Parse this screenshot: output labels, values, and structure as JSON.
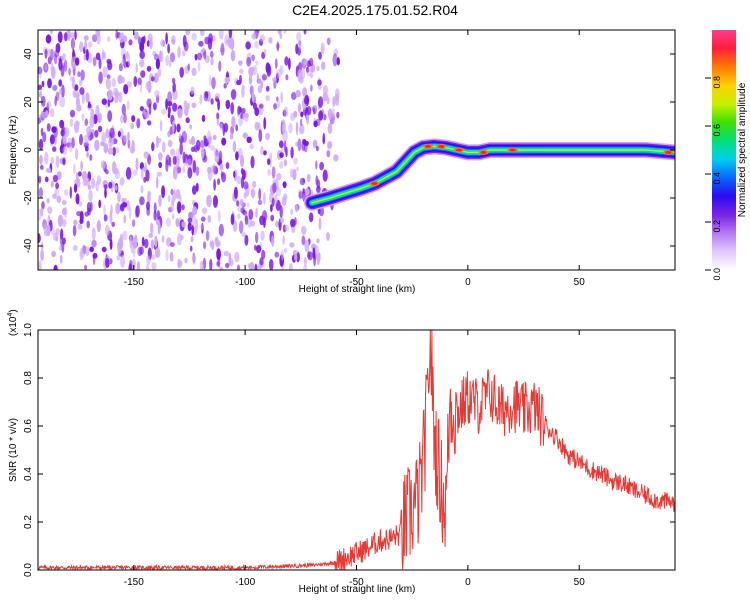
{
  "title": "C2E4.2025.175.01.52.R04",
  "colors": {
    "snr_line": "#e53935",
    "frame": "#000000",
    "scatter_dark": "#7b16e8",
    "scatter_light": "#cfa8f7"
  },
  "chart_data": [
    {
      "type": "heatmap",
      "xlabel": "Height of straight line (km)",
      "ylabel": "Frequency (Hz)",
      "xlim": [
        -193,
        93
      ],
      "ylim": [
        -50,
        50
      ],
      "xticks": [
        -150,
        -100,
        -50,
        0,
        50
      ],
      "yticks": [
        -40,
        -20,
        0,
        20,
        40
      ],
      "colorbar": {
        "label": "Normalized spectral amplitude",
        "range": [
          0,
          1
        ],
        "ticks": [
          "0.0",
          "0.2",
          "0.4",
          "0.6",
          "0.8"
        ],
        "colormap": [
          "#ffffff",
          "#e1c8fb",
          "#b678f2",
          "#7a22e6",
          "#2a0cf0",
          "#0a66ff",
          "#00d0f0",
          "#00e07a",
          "#3ce000",
          "#c8f000",
          "#ffd000",
          "#ff7a00",
          "#ff1e3c",
          "#ff3c8c"
        ]
      },
      "noise_region_x": [
        -193,
        -58
      ],
      "ridge": [
        {
          "x": -70,
          "y": -22
        },
        {
          "x": -62,
          "y": -20
        },
        {
          "x": -55,
          "y": -18
        },
        {
          "x": -48,
          "y": -16
        },
        {
          "x": -42,
          "y": -14
        },
        {
          "x": -38,
          "y": -12
        },
        {
          "x": -32,
          "y": -9
        },
        {
          "x": -28,
          "y": -5
        },
        {
          "x": -24,
          "y": -1
        },
        {
          "x": -20,
          "y": 1
        },
        {
          "x": -15,
          "y": 1.5
        },
        {
          "x": -10,
          "y": 1
        },
        {
          "x": -5,
          "y": 0
        },
        {
          "x": 0,
          "y": -1
        },
        {
          "x": 5,
          "y": -1
        },
        {
          "x": 10,
          "y": 0
        },
        {
          "x": 20,
          "y": 0
        },
        {
          "x": 40,
          "y": 0
        },
        {
          "x": 60,
          "y": 0
        },
        {
          "x": 80,
          "y": 0
        },
        {
          "x": 93,
          "y": -1
        }
      ],
      "hotspots": [
        {
          "x": -18,
          "y": 1.5
        },
        {
          "x": -12,
          "y": 1.5
        },
        {
          "x": -4,
          "y": 0
        },
        {
          "x": 7,
          "y": -1
        },
        {
          "x": 20,
          "y": 0
        },
        {
          "x": -42,
          "y": -14
        },
        {
          "x": 90,
          "y": -1
        }
      ]
    },
    {
      "type": "line",
      "xlabel": "Height of straight line (km)",
      "ylabel": "SNR (10 * v/v)",
      "scale_label": "(x10",
      "scale_exp": "4",
      "scale_close": ")",
      "xlim": [
        -193,
        93
      ],
      "ylim": [
        0,
        1.0
      ],
      "xticks": [
        -150,
        -100,
        -50,
        0,
        50
      ],
      "yticks": [
        "0.0",
        "0.2",
        "0.4",
        "0.6",
        "0.8",
        "1.0"
      ],
      "series": [
        {
          "x": [
            -193,
            -150,
            -100,
            -70,
            -60,
            -55,
            -50,
            -45,
            -40,
            -35,
            -30,
            -28,
            -25,
            -22,
            -20,
            -18,
            -17,
            -15,
            -12,
            -10,
            -8,
            -5,
            0,
            5,
            10,
            15,
            20,
            25,
            30,
            35,
            40,
            45,
            50,
            55,
            60,
            65,
            70,
            75,
            80,
            85,
            93
          ],
          "y": [
            0.01,
            0.01,
            0.01,
            0.02,
            0.03,
            0.05,
            0.07,
            0.09,
            0.12,
            0.13,
            0.15,
            0.2,
            0.25,
            0.3,
            0.45,
            0.7,
            1.0,
            0.55,
            0.35,
            0.25,
            0.7,
            0.65,
            0.72,
            0.68,
            0.74,
            0.66,
            0.7,
            0.66,
            0.68,
            0.6,
            0.55,
            0.48,
            0.45,
            0.42,
            0.4,
            0.37,
            0.36,
            0.33,
            0.31,
            0.29,
            0.28
          ]
        }
      ]
    }
  ]
}
